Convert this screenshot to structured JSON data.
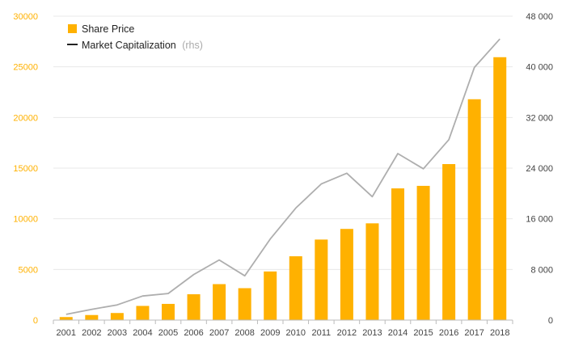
{
  "chart_data": {
    "type": "bar",
    "categories": [
      "2001",
      "2002",
      "2003",
      "2004",
      "2005",
      "2006",
      "2007",
      "2008",
      "2009",
      "2010",
      "2011",
      "2012",
      "2013",
      "2014",
      "2015",
      "2016",
      "2017",
      "2018"
    ],
    "series": [
      {
        "name": "Share Price",
        "type": "bar",
        "axis": "left",
        "color": "#FFB100",
        "values": [
          300,
          500,
          700,
          1400,
          1600,
          2550,
          3550,
          3150,
          4800,
          6300,
          7950,
          9000,
          9550,
          13000,
          13250,
          15400,
          21800,
          25950
        ]
      },
      {
        "name": "Market Capitalization",
        "legend_note": "(rhs)",
        "type": "line",
        "axis": "right",
        "color": "#AEAEAE",
        "values": [
          900,
          1700,
          2400,
          3800,
          4200,
          7200,
          9500,
          7000,
          12800,
          17700,
          21500,
          23200,
          19500,
          26300,
          23900,
          28500,
          39900,
          44400
        ]
      }
    ],
    "y_left": {
      "ylim": [
        0,
        30000
      ],
      "ticks": [
        "0",
        "5000",
        "10000",
        "15000",
        "20000",
        "25000",
        "30000"
      ],
      "color": "#FFB100"
    },
    "y_right": {
      "ylim": [
        0,
        48000
      ],
      "ticks": [
        "0",
        "8 000",
        "16 000",
        "24 000",
        "32 000",
        "40 000",
        "48 000"
      ]
    },
    "grid": true,
    "legend_position": "top-left",
    "colors": {
      "gridline": "#E8E8E8",
      "axis_line": "#BBBBBB",
      "tick_text": "#444444",
      "legend_note": "#AAAAAA",
      "legend_line_icon": "#222222"
    }
  }
}
